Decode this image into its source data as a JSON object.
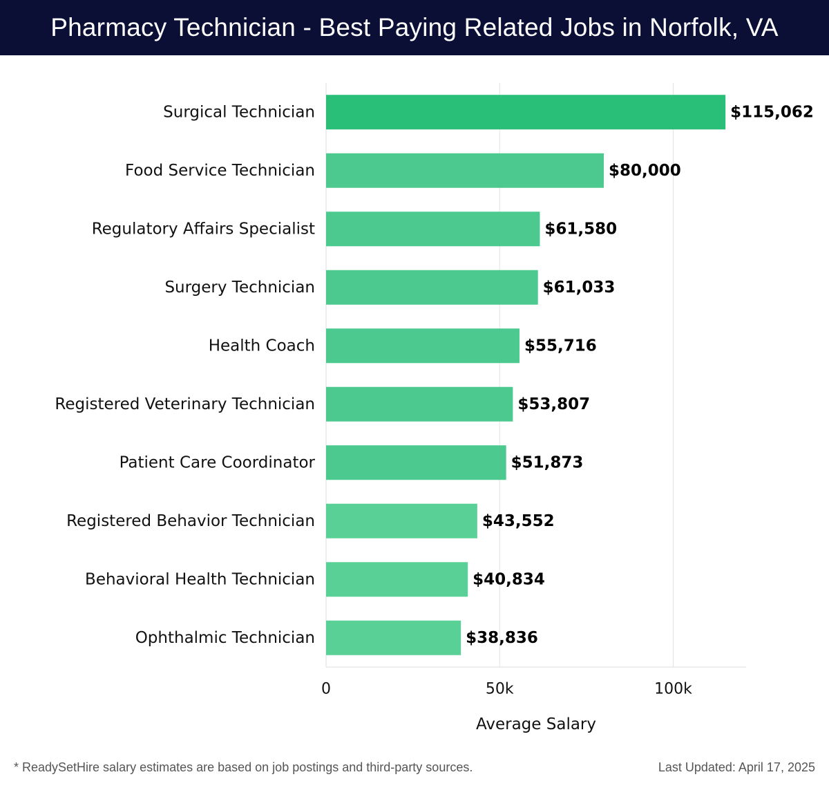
{
  "header": {
    "title": "Pharmacy Technician - Best Paying Related Jobs in Norfolk, VA"
  },
  "chart_data": {
    "type": "bar",
    "orientation": "horizontal",
    "title": "Pharmacy Technician - Best Paying Related Jobs in Norfolk, VA",
    "xlabel": "Average Salary",
    "ylabel": "",
    "categories": [
      "Surgical Technician",
      "Food Service Technician",
      "Regulatory Affairs Specialist",
      "Surgery Technician",
      "Health Coach",
      "Registered Veterinary Technician",
      "Patient Care Coordinator",
      "Registered Behavior Technician",
      "Behavioral Health Technician",
      "Ophthalmic Technician"
    ],
    "values": [
      115062,
      80000,
      61580,
      61033,
      55716,
      53807,
      51873,
      43552,
      40834,
      38836
    ],
    "value_labels": [
      "$115,062",
      "$80,000",
      "$61,580",
      "$61,033",
      "$55,716",
      "$53,807",
      "$51,873",
      "$43,552",
      "$40,834",
      "$38,836"
    ],
    "xlim": [
      0,
      121000
    ],
    "xticks": [
      0,
      50000,
      100000
    ],
    "xtick_labels": [
      "0",
      "50k",
      "100k"
    ],
    "grid": true,
    "colors": {
      "bar_top": "#2abf78",
      "bar": "#4cc98e",
      "bar_light": "#58d096",
      "grid": "#e4e4e4",
      "header_bg": "#0b0f35"
    }
  },
  "footer": {
    "note": "* ReadySetHire salary estimates are based on job postings and third-party sources.",
    "updated": "Last Updated: April 17, 2025"
  }
}
